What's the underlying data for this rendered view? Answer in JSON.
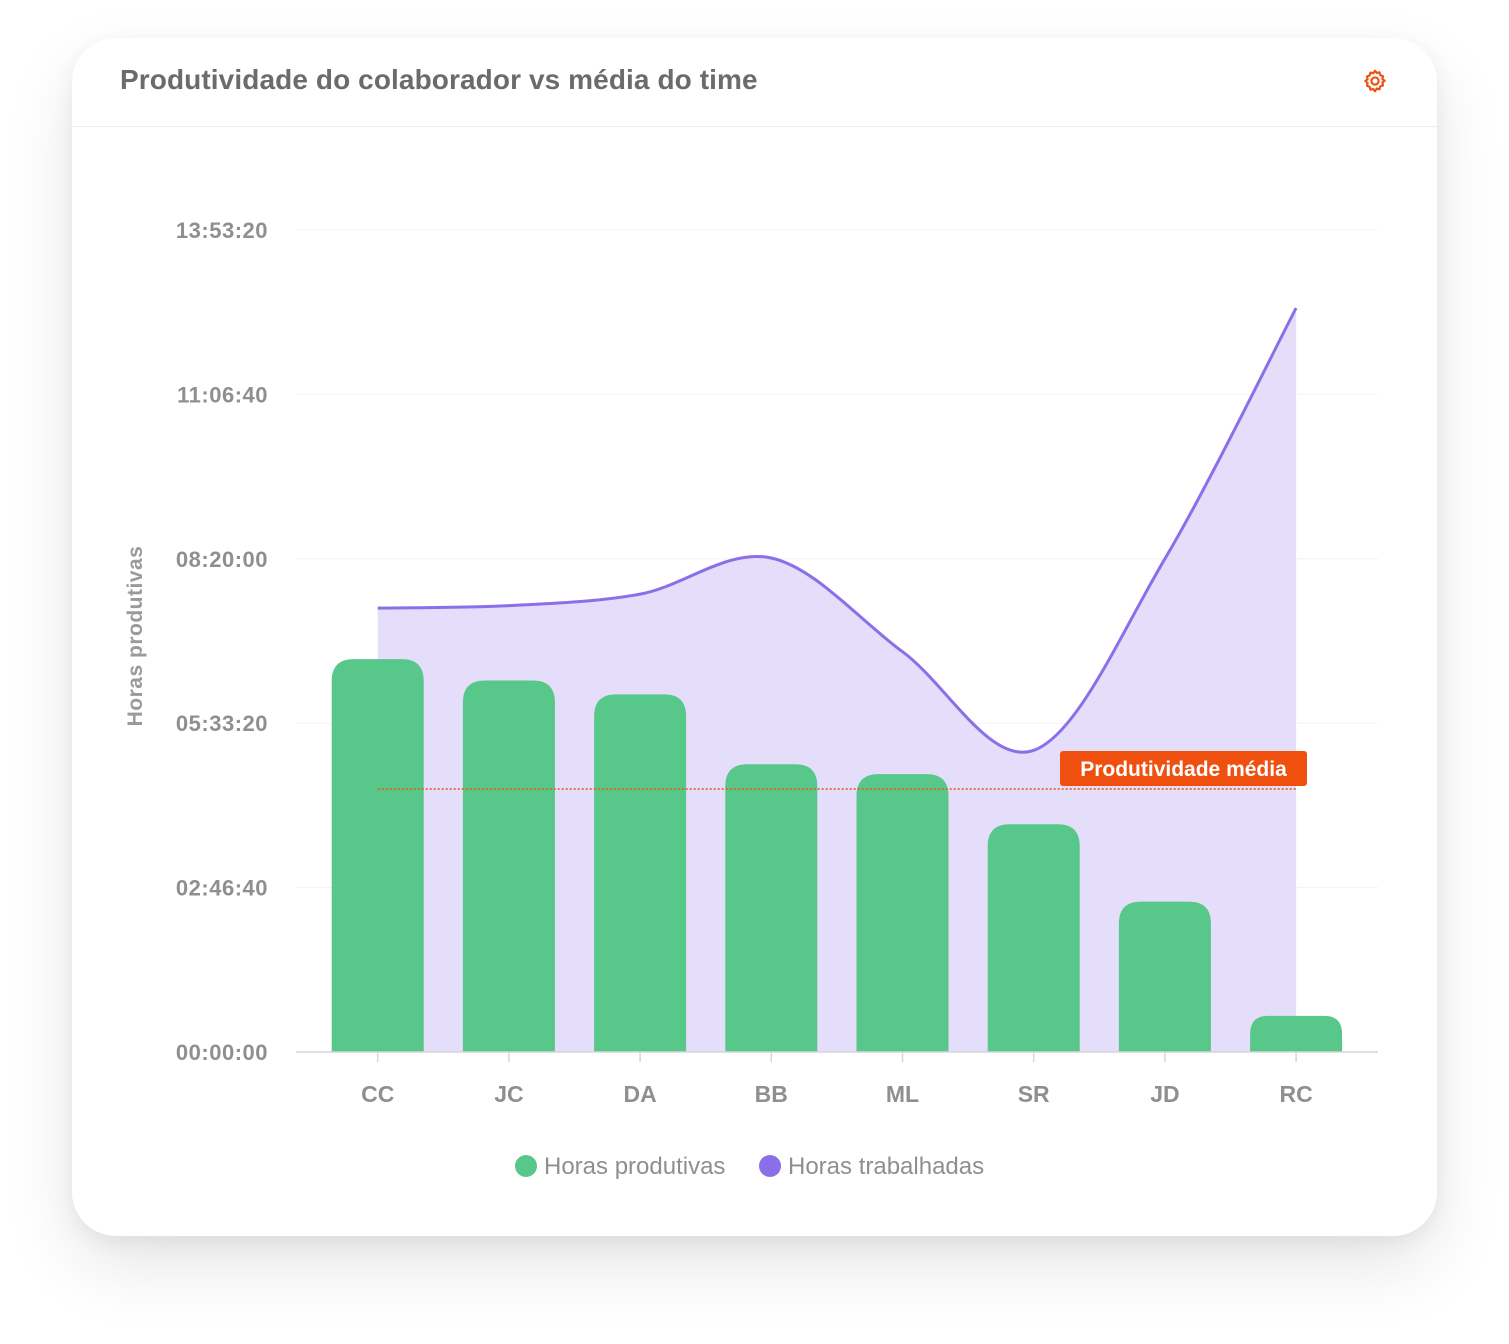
{
  "card": {
    "title": "Produtividade do colaborador vs média do time",
    "settings_icon": "gear-icon",
    "accent_color": "#f0500f"
  },
  "chart_data": {
    "type": "bar",
    "title": "Produtividade do colaborador vs média do time",
    "ylabel": "Horas produtivas",
    "xlabel": "",
    "categories": [
      "CC",
      "JC",
      "DA",
      "BB",
      "ML",
      "SR",
      "JD",
      "RC"
    ],
    "ylim": [
      0,
      50000
    ],
    "y_ticks": [
      "00:00:00",
      "02:46:40",
      "05:33:20",
      "08:20:00",
      "11:06:40",
      "13:53:20"
    ],
    "y_unit": "seconds",
    "grid": true,
    "legend_position": "bottom",
    "series": [
      {
        "name": "Horas produtivas",
        "type": "bar",
        "color": "#57c78a",
        "values": [
          23900,
          22600,
          21750,
          17500,
          16900,
          13850,
          9150,
          2200
        ]
      },
      {
        "name": "Horas trabalhadas",
        "type": "area",
        "color": "#8b6fe8",
        "fill": "#e4defa",
        "values": [
          27000,
          27150,
          27850,
          30050,
          24350,
          18350,
          30000,
          45250
        ]
      }
    ],
    "annotations": [
      {
        "type": "hline",
        "label": "Produtividade média",
        "value": 16000,
        "color": "#f0500f"
      }
    ]
  }
}
